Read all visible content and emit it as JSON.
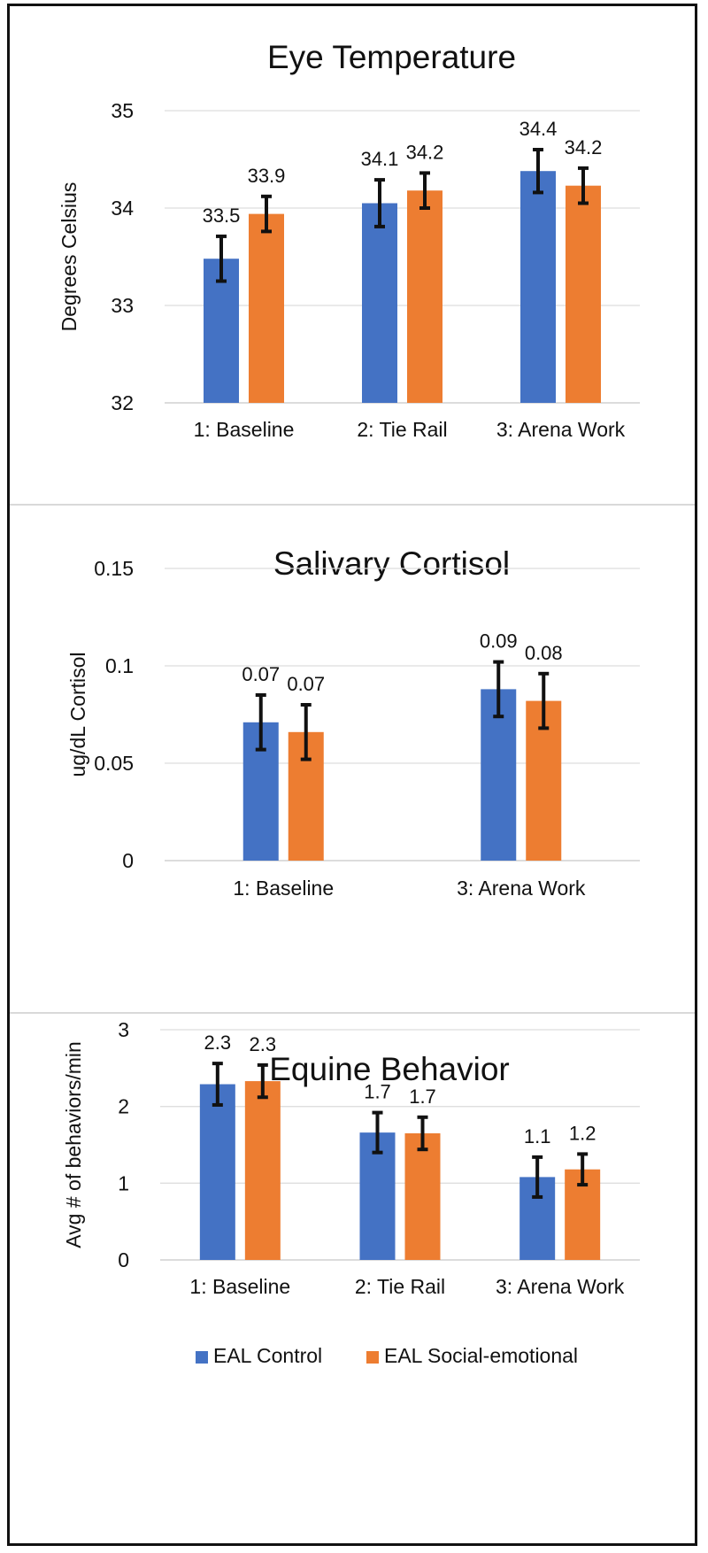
{
  "legend": {
    "series": [
      {
        "name": "EAL Control",
        "color": "#4472C4"
      },
      {
        "name": "EAL Social-emotional",
        "color": "#ED7D31"
      }
    ],
    "position": "bottom-center"
  },
  "chart_data": [
    {
      "type": "bar",
      "title": "Eye Temperature",
      "xlabel": "",
      "ylabel": "Degrees Celsius",
      "ylim": [
        32,
        35
      ],
      "yticks": [
        "32",
        "33",
        "34",
        "35"
      ],
      "grid": true,
      "categories": [
        "1: Baseline",
        "2: Tie Rail",
        "3: Arena Work"
      ],
      "series": [
        {
          "name": "EAL Control",
          "values": [
            33.48,
            34.05,
            34.38
          ],
          "errors": [
            0.23,
            0.24,
            0.22
          ],
          "labels": [
            "33.5",
            "34.1",
            "34.4"
          ]
        },
        {
          "name": "EAL Social-emotional",
          "values": [
            33.94,
            34.18,
            34.23
          ],
          "errors": [
            0.18,
            0.18,
            0.18
          ],
          "labels": [
            "33.9",
            "34.2",
            "34.2"
          ]
        }
      ]
    },
    {
      "type": "bar",
      "title": "Salivary Cortisol",
      "xlabel": "",
      "ylabel": "ug/dL Cortisol",
      "ylim": [
        0,
        0.15
      ],
      "yticks": [
        "0",
        "0.05",
        "0.1",
        "0.15"
      ],
      "grid": true,
      "categories": [
        "1: Baseline",
        "3: Arena Work"
      ],
      "series": [
        {
          "name": "EAL Control",
          "values": [
            0.071,
            0.088
          ],
          "errors": [
            0.014,
            0.014
          ],
          "labels": [
            "0.07",
            "0.09"
          ]
        },
        {
          "name": "EAL Social-emotional",
          "values": [
            0.066,
            0.082
          ],
          "errors": [
            0.014,
            0.014
          ],
          "labels": [
            "0.07",
            "0.08"
          ]
        }
      ]
    },
    {
      "type": "bar",
      "title": "Equine Behavior",
      "xlabel": "",
      "ylabel": "Avg # of behaviors/min",
      "ylim": [
        0,
        3
      ],
      "yticks": [
        "0",
        "1",
        "2",
        "3"
      ],
      "grid": true,
      "categories": [
        "1: Baseline",
        "2: Tie Rail",
        "3: Arena Work"
      ],
      "series": [
        {
          "name": "EAL Control",
          "values": [
            2.29,
            1.66,
            1.08
          ],
          "errors": [
            0.27,
            0.26,
            0.26
          ],
          "labels": [
            "2.3",
            "1.7",
            "1.1"
          ]
        },
        {
          "name": "EAL Social-emotional",
          "values": [
            2.33,
            1.65,
            1.18
          ],
          "errors": [
            0.21,
            0.21,
            0.2
          ],
          "labels": [
            "2.3",
            "1.7",
            "1.2"
          ]
        }
      ]
    }
  ]
}
